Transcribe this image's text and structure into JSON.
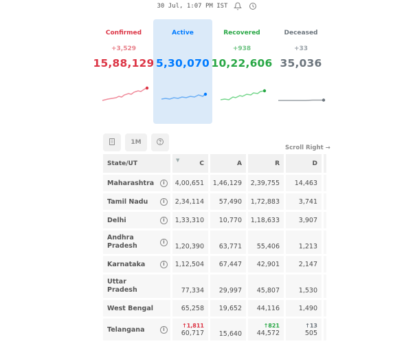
{
  "header": {
    "last_updated": "30 Jul, 1:07 PM IST",
    "icons": [
      "bell-icon",
      "history-icon"
    ]
  },
  "levels": [
    {
      "key": "confirmed",
      "label": "Confirmed",
      "delta": "+3,529",
      "total": "15,88,129",
      "color": "#dc3545"
    },
    {
      "key": "active",
      "label": "Active",
      "delta": "",
      "total": "5,30,070",
      "color": "#007bff"
    },
    {
      "key": "recovered",
      "label": "Recovered",
      "delta": "+938",
      "total": "10,22,606",
      "color": "#28a745"
    },
    {
      "key": "deceased",
      "label": "Deceased",
      "delta": "+33",
      "total": "35,036",
      "color": "#6c757d"
    }
  ],
  "controls": {
    "timeseries_label": "1M",
    "icons": [
      "district-icon",
      "help-icon"
    ]
  },
  "scroll_hint": "Scroll Right →",
  "table": {
    "columns": [
      "State/UT",
      "C",
      "A",
      "R",
      "D"
    ],
    "rows": [
      {
        "state": "Maharashtra",
        "c": "4,00,651",
        "a": "1,46,129",
        "r": "2,39,755",
        "d": "14,463"
      },
      {
        "state": "Tamil Nadu",
        "c": "2,34,114",
        "a": "57,490",
        "r": "1,72,883",
        "d": "3,741"
      },
      {
        "state": "Delhi",
        "c": "1,33,310",
        "a": "10,770",
        "r": "1,18,633",
        "d": "3,907"
      },
      {
        "state": "Andhra Pradesh",
        "c": "1,20,390",
        "a": "63,771",
        "r": "55,406",
        "d": "1,213"
      },
      {
        "state": "Karnataka",
        "c": "1,12,504",
        "a": "67,447",
        "r": "42,901",
        "d": "2,147"
      },
      {
        "state": "Uttar Pradesh",
        "c": "77,334",
        "a": "29,997",
        "r": "45,807",
        "d": "1,530"
      },
      {
        "state": "West Bengal",
        "c": "65,258",
        "a": "19,652",
        "r": "44,116",
        "d": "1,490"
      },
      {
        "state": "Telangana",
        "c": "60,717",
        "c_delta": "↑1,811",
        "a": "15,640",
        "r": "44,572",
        "r_delta": "↑821",
        "d": "505",
        "d_delta": "↑13"
      }
    ]
  }
}
